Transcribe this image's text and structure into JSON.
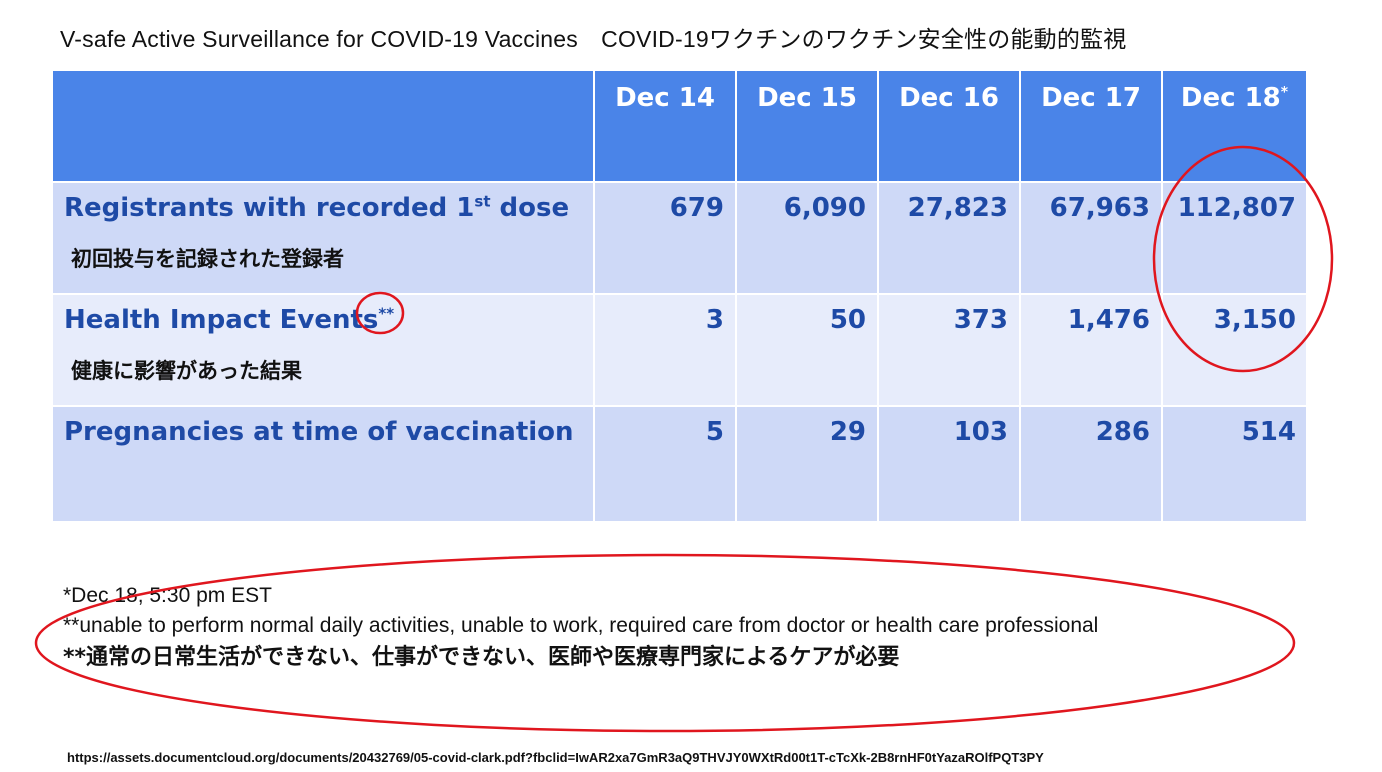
{
  "title": "V-safe Active Surveillance for COVID-19 Vaccines　COVID-19ワクチンのワクチン安全性の能動的監視",
  "table": {
    "headers": [
      {
        "label": "Dec 14",
        "sup": ""
      },
      {
        "label": "Dec 15",
        "sup": ""
      },
      {
        "label": "Dec 16",
        "sup": ""
      },
      {
        "label": "Dec 17",
        "sup": ""
      },
      {
        "label": "Dec 18",
        "sup": "*"
      }
    ],
    "rows": [
      {
        "label_pre": "Registrants with recorded 1",
        "label_sup": "st",
        "label_post": " dose",
        "label_ja": "初回投与を記録された登録者",
        "values": [
          "679",
          "6,090",
          "27,823",
          "67,963",
          "112,807"
        ]
      },
      {
        "label_pre": "Health Impact Events",
        "label_sup": "**",
        "label_post": "",
        "label_ja": "健康に影響があった結果",
        "values": [
          "3",
          "50",
          "373",
          "1,476",
          "3,150"
        ]
      },
      {
        "label_pre": "Pregnancies at time of vaccination",
        "label_sup": "",
        "label_post": "",
        "label_ja": "",
        "values": [
          "5",
          "29",
          "103",
          "286",
          "514"
        ]
      }
    ]
  },
  "notes": {
    "note1": "*Dec 18, 5:30 pm EST",
    "note2": "**unable to perform normal daily activities, unable to work, required care from doctor or health care professional",
    "note3": "**通常の日常生活ができない、仕事ができない、医師や医療専門家によるケアが必要"
  },
  "source_url": "https://assets.documentcloud.org/documents/20432769/05-covid-clark.pdf?fbclid=IwAR2xa7GmR3aQ9THVJY0WXtRd00t1T-cTcXk-2B8rnHF0tYazaROlfPQT3PY",
  "colors": {
    "header_blue": "#4a84e8",
    "row_dark": "#ced9f7",
    "row_light": "#e7ecfb",
    "text_blue": "#1e4aa6",
    "annotation_red": "#e0161e"
  }
}
